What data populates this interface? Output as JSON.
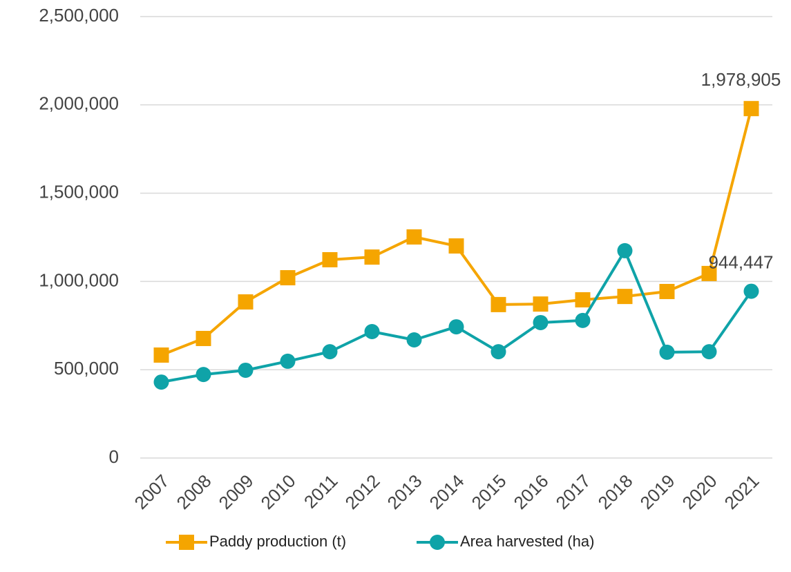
{
  "chart_data": {
    "type": "line",
    "categories": [
      "2007",
      "2008",
      "2009",
      "2010",
      "2011",
      "2012",
      "2013",
      "2014",
      "2015",
      "2016",
      "2017",
      "2018",
      "2019",
      "2020",
      "2021"
    ],
    "series": [
      {
        "name": "Paddy production (t)",
        "color": "#f5a500",
        "marker": "square",
        "values": [
          583000,
          677000,
          884000,
          1021000,
          1123000,
          1138000,
          1252000,
          1201000,
          869000,
          872000,
          896000,
          915000,
          943000,
          1045000,
          1978905
        ],
        "value_labels": [
          null,
          null,
          null,
          null,
          null,
          null,
          null,
          null,
          null,
          null,
          null,
          null,
          null,
          null,
          "1,978,905"
        ]
      },
      {
        "name": "Area harvested (ha)",
        "color": "#0fa3a8",
        "marker": "circle",
        "values": [
          430000,
          473000,
          497000,
          548000,
          602000,
          716000,
          669000,
          743000,
          602000,
          767000,
          779000,
          1174000,
          599000,
          602000,
          944447
        ],
        "value_labels": [
          null,
          null,
          null,
          null,
          null,
          null,
          null,
          null,
          null,
          null,
          null,
          null,
          null,
          null,
          "944,447"
        ]
      }
    ],
    "ylim": [
      0,
      2500000
    ],
    "yticks": [
      0,
      {
        "value": 500000,
        "label": "500,000"
      },
      {
        "value": 1000000,
        "label": "1,000,000"
      },
      {
        "value": 1500000,
        "label": "1,500,000"
      },
      {
        "value": 2000000,
        "label": "2,000,000"
      },
      {
        "value": 2500000,
        "label": "2,500,000"
      }
    ],
    "grid": true,
    "legend": "bottom"
  }
}
